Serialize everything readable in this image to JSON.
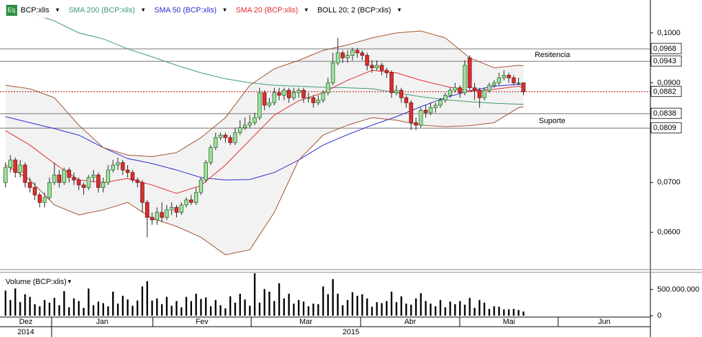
{
  "chart_data": {
    "type": "candlestick",
    "symbol": "BCP:xlis",
    "up_color": "#9fe09f",
    "down_color": "#d83030",
    "ylim": [
      0.0528,
      0.1055
    ],
    "yticks": [
      {
        "value": 0.06,
        "label": "0,0600"
      },
      {
        "value": 0.07,
        "label": "0,0700"
      },
      {
        "value": 0.09,
        "label": "0,0900"
      },
      {
        "value": 0.1,
        "label": "0,1000"
      }
    ],
    "open": [
      0.07,
      0.073,
      0.0745,
      0.072,
      0.0735,
      0.07,
      0.069,
      0.0675,
      0.066,
      0.067,
      0.07,
      0.0715,
      0.07,
      0.0725,
      0.071,
      0.0705,
      0.0695,
      0.069,
      0.071,
      0.0715,
      0.069,
      0.07,
      0.0725,
      0.0735,
      0.074,
      0.0725,
      0.072,
      0.0705,
      0.07,
      0.066,
      0.063,
      0.0625,
      0.064,
      0.063,
      0.0645,
      0.065,
      0.064,
      0.0655,
      0.0665,
      0.066,
      0.068,
      0.0705,
      0.074,
      0.077,
      0.079,
      0.0795,
      0.079,
      0.078,
      0.08,
      0.081,
      0.0815,
      0.082,
      0.083,
      0.088,
      0.0855,
      0.086,
      0.088,
      0.0875,
      0.0885,
      0.087,
      0.088,
      0.0885,
      0.087,
      0.087,
      0.086,
      0.0865,
      0.088,
      0.09,
      0.094,
      0.096,
      0.095,
      0.0955,
      0.0965,
      0.096,
      0.0955,
      0.0935,
      0.093,
      0.0935,
      0.0925,
      0.092,
      0.088,
      0.0885,
      0.087,
      0.086,
      0.082,
      0.0815,
      0.0845,
      0.084,
      0.085,
      0.0855,
      0.0865,
      0.0875,
      0.0885,
      0.089,
      0.088,
      0.095,
      0.089,
      0.0885,
      0.087,
      0.0885,
      0.0895,
      0.09,
      0.091,
      0.0915,
      0.091,
      0.09,
      0.09
    ],
    "high": [
      0.074,
      0.0755,
      0.075,
      0.0745,
      0.074,
      0.071,
      0.07,
      0.068,
      0.068,
      0.071,
      0.074,
      0.0725,
      0.073,
      0.073,
      0.072,
      0.071,
      0.07,
      0.0715,
      0.0725,
      0.072,
      0.071,
      0.0735,
      0.0745,
      0.075,
      0.0745,
      0.0735,
      0.0725,
      0.071,
      0.0705,
      0.0665,
      0.064,
      0.065,
      0.066,
      0.0655,
      0.066,
      0.0655,
      0.066,
      0.067,
      0.0675,
      0.069,
      0.071,
      0.0745,
      0.0775,
      0.08,
      0.08,
      0.08,
      0.0795,
      0.081,
      0.0825,
      0.083,
      0.0835,
      0.084,
      0.089,
      0.0885,
      0.087,
      0.089,
      0.089,
      0.089,
      0.089,
      0.089,
      0.089,
      0.089,
      0.088,
      0.0875,
      0.0875,
      0.0885,
      0.091,
      0.096,
      0.099,
      0.0965,
      0.0965,
      0.097,
      0.097,
      0.0965,
      0.096,
      0.0945,
      0.0945,
      0.094,
      0.093,
      0.0925,
      0.0895,
      0.089,
      0.0875,
      0.0865,
      0.083,
      0.085,
      0.0855,
      0.086,
      0.086,
      0.087,
      0.088,
      0.089,
      0.09,
      0.0895,
      0.0945,
      0.0955,
      0.09,
      0.089,
      0.089,
      0.09,
      0.0905,
      0.092,
      0.0925,
      0.092,
      0.0915,
      0.091,
      0.09
    ],
    "low": [
      0.069,
      0.072,
      0.071,
      0.071,
      0.069,
      0.068,
      0.0665,
      0.065,
      0.065,
      0.0665,
      0.0695,
      0.069,
      0.0695,
      0.07,
      0.0695,
      0.0685,
      0.0675,
      0.0685,
      0.07,
      0.068,
      0.068,
      0.0695,
      0.072,
      0.0725,
      0.0715,
      0.071,
      0.07,
      0.069,
      0.064,
      0.059,
      0.0615,
      0.0615,
      0.062,
      0.0625,
      0.0635,
      0.063,
      0.0635,
      0.065,
      0.0655,
      0.0655,
      0.0675,
      0.07,
      0.0735,
      0.0765,
      0.0785,
      0.078,
      0.0775,
      0.0775,
      0.0795,
      0.0805,
      0.081,
      0.0815,
      0.0825,
      0.0845,
      0.085,
      0.0855,
      0.0865,
      0.0865,
      0.086,
      0.0865,
      0.087,
      0.086,
      0.086,
      0.085,
      0.0855,
      0.086,
      0.0875,
      0.0895,
      0.0935,
      0.094,
      0.094,
      0.0945,
      0.095,
      0.0945,
      0.0925,
      0.092,
      0.0925,
      0.0915,
      0.091,
      0.087,
      0.0875,
      0.086,
      0.085,
      0.0805,
      0.0805,
      0.081,
      0.083,
      0.0835,
      0.084,
      0.085,
      0.086,
      0.087,
      0.088,
      0.087,
      0.0875,
      0.0885,
      0.0865,
      0.085,
      0.0865,
      0.088,
      0.089,
      0.0895,
      0.0905,
      0.09,
      0.0895,
      0.0895,
      0.0875
    ],
    "close": [
      0.073,
      0.0745,
      0.072,
      0.0735,
      0.07,
      0.069,
      0.0675,
      0.066,
      0.067,
      0.07,
      0.0715,
      0.07,
      0.0725,
      0.071,
      0.0705,
      0.0695,
      0.069,
      0.071,
      0.0715,
      0.069,
      0.07,
      0.0725,
      0.0735,
      0.074,
      0.0725,
      0.072,
      0.0705,
      0.07,
      0.066,
      0.063,
      0.0625,
      0.064,
      0.063,
      0.0645,
      0.065,
      0.064,
      0.0655,
      0.0665,
      0.066,
      0.068,
      0.0705,
      0.074,
      0.077,
      0.079,
      0.0795,
      0.079,
      0.078,
      0.08,
      0.081,
      0.0815,
      0.082,
      0.083,
      0.088,
      0.0855,
      0.086,
      0.088,
      0.0875,
      0.0885,
      0.087,
      0.088,
      0.0885,
      0.087,
      0.087,
      0.086,
      0.0865,
      0.088,
      0.09,
      0.094,
      0.096,
      0.095,
      0.0955,
      0.0965,
      0.096,
      0.0955,
      0.0935,
      0.093,
      0.0935,
      0.0925,
      0.092,
      0.088,
      0.0885,
      0.087,
      0.086,
      0.082,
      0.0815,
      0.0845,
      0.084,
      0.085,
      0.0855,
      0.0865,
      0.0875,
      0.0885,
      0.089,
      0.088,
      0.0935,
      0.089,
      0.0885,
      0.087,
      0.0885,
      0.0895,
      0.09,
      0.091,
      0.0915,
      0.091,
      0.09,
      0.09,
      0.0882
    ],
    "series": [
      {
        "name": "SMA 200 (BCP:xlis)",
        "color": "#3c9a6e",
        "x": [
          0,
          5,
          10,
          15,
          20,
          25,
          30,
          35,
          40,
          45,
          50,
          55,
          60,
          65,
          70,
          75,
          80,
          85,
          90,
          95,
          100,
          105,
          106
        ],
        "values": [
          0.1052,
          0.104,
          0.1024,
          0.1,
          0.0988,
          0.0968,
          0.0952,
          0.0935,
          0.092,
          0.0908,
          0.09,
          0.0895,
          0.0893,
          0.0891,
          0.089,
          0.0888,
          0.088,
          0.0872,
          0.0866,
          0.0862,
          0.0859,
          0.0857,
          0.0857
        ]
      },
      {
        "name": "SMA 50 (BCP:xlis)",
        "color": "#2a2ad0",
        "x": [
          0,
          5,
          10,
          15,
          20,
          25,
          30,
          35,
          40,
          45,
          50,
          55,
          60,
          65,
          70,
          75,
          80,
          85,
          90,
          95,
          100,
          105,
          106
        ],
        "values": [
          0.0832,
          0.082,
          0.0808,
          0.0795,
          0.077,
          0.0748,
          0.0738,
          0.0725,
          0.071,
          0.0705,
          0.0706,
          0.072,
          0.0745,
          0.0775,
          0.0796,
          0.0815,
          0.0832,
          0.0852,
          0.087,
          0.0884,
          0.0893,
          0.0897,
          0.0895
        ]
      },
      {
        "name": "SMA 20 (BCP:xlis)",
        "color": "#e02828",
        "x": [
          0,
          5,
          10,
          15,
          20,
          25,
          30,
          35,
          40,
          45,
          50,
          55,
          60,
          65,
          70,
          75,
          80,
          85,
          90,
          95,
          100,
          105,
          106
        ],
        "values": [
          0.0804,
          0.0775,
          0.0738,
          0.0705,
          0.07,
          0.0708,
          0.0695,
          0.0678,
          0.0694,
          0.0735,
          0.0785,
          0.0835,
          0.0864,
          0.088,
          0.0905,
          0.0925,
          0.092,
          0.0905,
          0.0893,
          0.0883,
          0.0887,
          0.0893,
          0.089
        ]
      }
    ],
    "band": {
      "name": "BOLL 20; 2 (BCP:xlis)",
      "color": "#a0522d",
      "fill": "#f2f2f2",
      "x": [
        0,
        5,
        10,
        15,
        20,
        25,
        30,
        35,
        40,
        45,
        50,
        55,
        60,
        65,
        70,
        75,
        80,
        85,
        90,
        95,
        100,
        105,
        106
      ],
      "upper": [
        0.0895,
        0.0888,
        0.087,
        0.0815,
        0.077,
        0.0755,
        0.0752,
        0.076,
        0.079,
        0.083,
        0.0895,
        0.0928,
        0.0945,
        0.0965,
        0.0976,
        0.099,
        0.1,
        0.1004,
        0.099,
        0.095,
        0.093,
        0.0935,
        0.0934
      ],
      "lower": [
        0.0735,
        0.0705,
        0.0655,
        0.0635,
        0.0645,
        0.066,
        0.0628,
        0.0612,
        0.059,
        0.0555,
        0.0565,
        0.064,
        0.0745,
        0.0795,
        0.0815,
        0.083,
        0.0825,
        0.0815,
        0.0812,
        0.0814,
        0.082,
        0.085,
        0.0852
      ]
    },
    "levels": [
      {
        "value": 0.0968,
        "label": "0,0968",
        "color": "#808080",
        "dashed": false
      },
      {
        "value": 0.0943,
        "label": "0,0943",
        "color": "#808080",
        "dashed": false
      },
      {
        "value": 0.0882,
        "label": "0,0882",
        "color": "#c00000",
        "dashed": true
      },
      {
        "value": 0.0838,
        "label": "0,0838",
        "color": "#808080",
        "dashed": false
      },
      {
        "value": 0.0809,
        "label": "0,0809",
        "color": "#808080",
        "dashed": false
      }
    ],
    "annotations": [
      {
        "text": "Resitencia"
      },
      {
        "text": "Suporte"
      }
    ],
    "volume": {
      "title": "Volume (BCP:xlis)",
      "color": "#000000",
      "ylim": [
        0,
        829000000
      ],
      "yticks": [
        0,
        {
          "value": 500000000,
          "label": "500.000.000"
        }
      ],
      "values": [
        480000000,
        300000000,
        520000000,
        260000000,
        410000000,
        360000000,
        220000000,
        180000000,
        300000000,
        250000000,
        340000000,
        200000000,
        470000000,
        160000000,
        330000000,
        280000000,
        150000000,
        520000000,
        200000000,
        270000000,
        240000000,
        180000000,
        460000000,
        230000000,
        380000000,
        310000000,
        190000000,
        290000000,
        560000000,
        660000000,
        290000000,
        330000000,
        220000000,
        360000000,
        190000000,
        280000000,
        160000000,
        360000000,
        280000000,
        420000000,
        320000000,
        350000000,
        180000000,
        300000000,
        200000000,
        140000000,
        370000000,
        250000000,
        420000000,
        310000000,
        190000000,
        810000000,
        250000000,
        510000000,
        460000000,
        280000000,
        620000000,
        330000000,
        420000000,
        230000000,
        300000000,
        270000000,
        180000000,
        230000000,
        220000000,
        560000000,
        410000000,
        700000000,
        420000000,
        200000000,
        300000000,
        450000000,
        380000000,
        410000000,
        330000000,
        170000000,
        260000000,
        240000000,
        280000000,
        460000000,
        260000000,
        370000000,
        230000000,
        210000000,
        330000000,
        430000000,
        280000000,
        230000000,
        180000000,
        300000000,
        160000000,
        270000000,
        220000000,
        280000000,
        210000000,
        340000000,
        150000000,
        300000000,
        250000000,
        130000000,
        180000000,
        170000000,
        120000000,
        120000000,
        130000000,
        110000000,
        80000000
      ]
    },
    "x_axis": {
      "months": [
        "Dez",
        "Jan",
        "Fev",
        "Mar",
        "Abr",
        "Mai",
        "Jun"
      ],
      "years": [
        "2014",
        "2015"
      ]
    }
  }
}
